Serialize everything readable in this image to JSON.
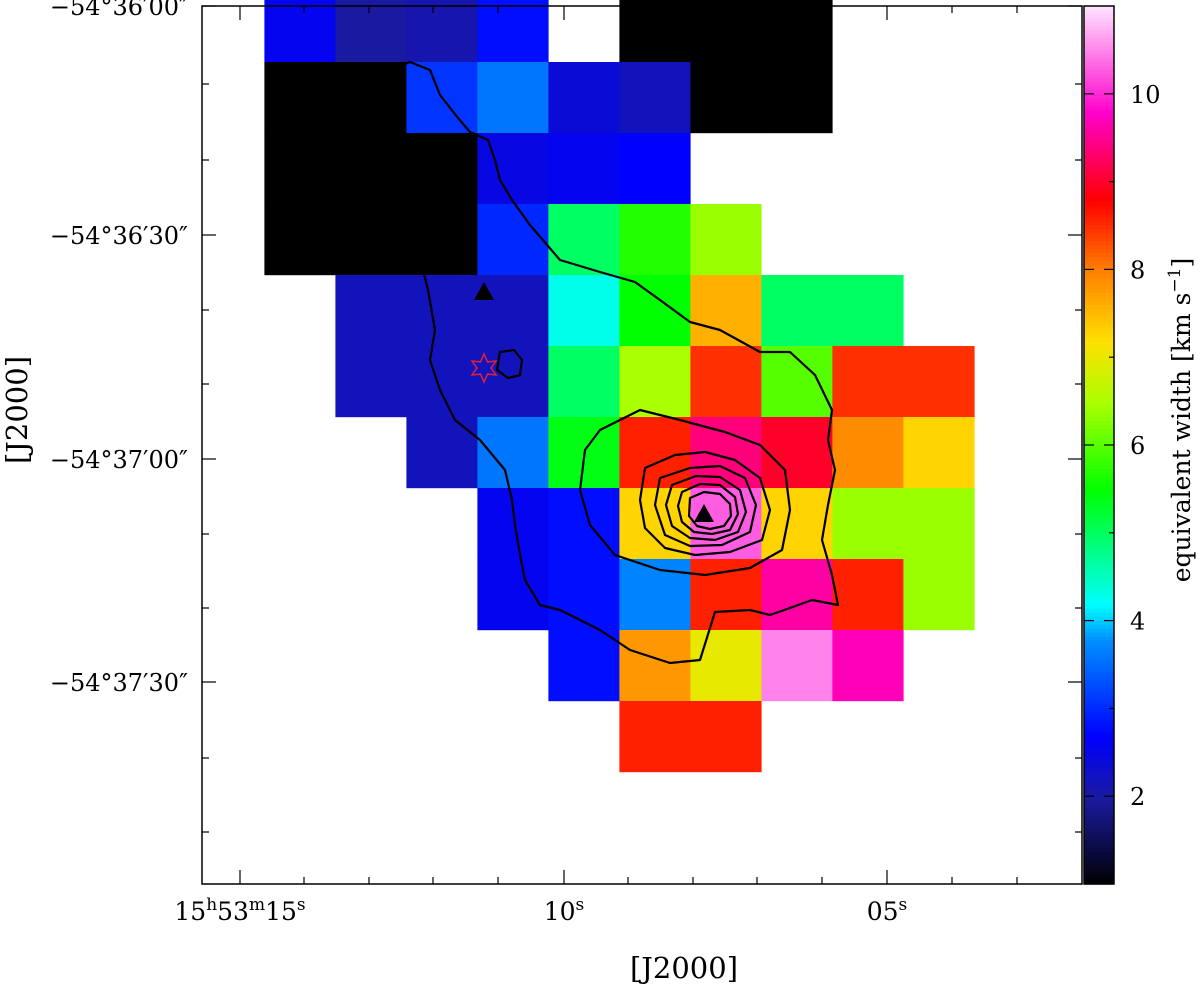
{
  "chart_data": {
    "type": "heatmap",
    "title": "",
    "xlabel": "[J2000]",
    "ylabel": "[J2000]",
    "colorbar": {
      "label_main": "equivalent width [km s",
      "label_sup": "−1",
      "label_close": "]",
      "range": [
        1.0,
        11.0
      ],
      "ticks": [
        {
          "value": 2,
          "label": "2"
        },
        {
          "value": 4,
          "label": "4"
        },
        {
          "value": 6,
          "label": "6"
        },
        {
          "value": 8,
          "label": "8"
        },
        {
          "value": 10,
          "label": "10"
        }
      ],
      "colormap_stops": [
        {
          "t": 0.0,
          "color": "#000000"
        },
        {
          "t": 0.1,
          "color": "#1a1aa0"
        },
        {
          "t": 0.17,
          "color": "#0000ff"
        },
        {
          "t": 0.28,
          "color": "#0090ff"
        },
        {
          "t": 0.32,
          "color": "#00ffff"
        },
        {
          "t": 0.45,
          "color": "#00ff00"
        },
        {
          "t": 0.55,
          "color": "#aaff00"
        },
        {
          "t": 0.62,
          "color": "#ffe000"
        },
        {
          "t": 0.7,
          "color": "#ff8000"
        },
        {
          "t": 0.78,
          "color": "#ff0000"
        },
        {
          "t": 0.88,
          "color": "#ff00cc"
        },
        {
          "t": 1.0,
          "color": "#ffe0ff"
        }
      ]
    },
    "x_ticks": [
      {
        "ra_sec": 15,
        "parts": [
          "15",
          "h",
          "53",
          "m",
          "15",
          "s"
        ]
      },
      {
        "ra_sec": 10,
        "parts": [
          "10",
          "s"
        ]
      },
      {
        "ra_sec": 5,
        "parts": [
          "05",
          "s"
        ]
      }
    ],
    "y_ticks": [
      {
        "dec_arcsec": 0,
        "label": "−54°36′00″"
      },
      {
        "dec_arcsec": 30,
        "label": "−54°36′30″"
      },
      {
        "dec_arcsec": 60,
        "label": "−54°37′00″"
      },
      {
        "dec_arcsec": 90,
        "label": "−54°37′30″"
      }
    ],
    "x_range_ra_sec": [
      15.5,
      2.8
    ],
    "y_range_dec_arcsec": [
      0,
      118
    ],
    "pixel_size_arcsec": 9.5,
    "grid_rows": [
      [
        2.6,
        2.0,
        2.1,
        2.8,
        null,
        1.0,
        1.0,
        1.0,
        null,
        null
      ],
      [
        1.0,
        1.0,
        3.1,
        3.6,
        2.4,
        2.2,
        1.0,
        1.0,
        null,
        null
      ],
      [
        1.0,
        1.0,
        1.0,
        2.5,
        2.6,
        2.7,
        null,
        null,
        null,
        null
      ],
      [
        1.0,
        1.0,
        1.0,
        3.0,
        5.0,
        5.7,
        6.4,
        null,
        null,
        null
      ],
      [
        null,
        2.2,
        2.2,
        2.2,
        4.3,
        5.5,
        7.6,
        5.0,
        5.0,
        null
      ],
      [
        null,
        2.2,
        2.2,
        2.2,
        5.0,
        6.5,
        8.5,
        6.0,
        8.5,
        8.5
      ],
      [
        null,
        null,
        2.2,
        3.6,
        5.4,
        8.6,
        9.4,
        9.0,
        7.9,
        7.3
      ],
      [
        null,
        null,
        null,
        2.6,
        2.8,
        7.3,
        10.3,
        7.3,
        6.4,
        6.4
      ],
      [
        null,
        null,
        null,
        2.6,
        2.8,
        3.7,
        8.6,
        9.6,
        8.6,
        6.4
      ],
      [
        null,
        null,
        null,
        null,
        2.8,
        7.8,
        7.0,
        10.5,
        9.7,
        null
      ],
      [
        null,
        null,
        null,
        null,
        null,
        8.6,
        8.6,
        null,
        null,
        null
      ]
    ],
    "markers": [
      {
        "name": "north-triangle",
        "ra_sec": 11.2,
        "dec_arcsec": 41
      },
      {
        "name": "central-triangle",
        "ra_sec": 7.1,
        "dec_arcsec": 68
      },
      {
        "name": "red-star",
        "ra_sec": 11.2,
        "dec_arcsec": 49
      }
    ]
  }
}
